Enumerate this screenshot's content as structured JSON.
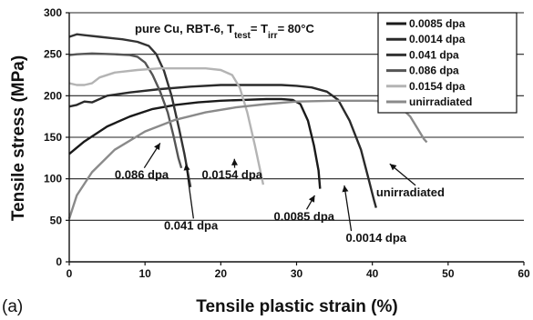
{
  "panel_label": "(a)",
  "chart_data": {
    "type": "line",
    "title_parts": [
      {
        "text": "pure Cu, RBT-6,  T",
        "shift": ""
      },
      {
        "text": "test",
        "shift": "sub"
      },
      {
        "text": "= T",
        "shift": ""
      },
      {
        "text": "irr",
        "shift": "sub"
      },
      {
        "text": "= 80°C",
        "shift": ""
      }
    ],
    "xlabel": "Tensile plastic strain (%)",
    "ylabel": "Tensile stress (MPa)",
    "xlim": [
      0,
      60
    ],
    "ylim": [
      0,
      300
    ],
    "xticks": [
      0,
      10,
      20,
      30,
      40,
      50,
      60
    ],
    "yticks": [
      0,
      50,
      100,
      150,
      200,
      250,
      300
    ],
    "grid": "horizontal",
    "legend_position": "top-right",
    "series": [
      {
        "name": "0.0085 dpa",
        "color": "#1a1a1a",
        "points": [
          [
            0,
            130
          ],
          [
            2,
            145
          ],
          [
            5,
            163
          ],
          [
            8,
            175
          ],
          [
            11,
            184
          ],
          [
            14,
            189
          ],
          [
            17,
            192
          ],
          [
            20,
            194
          ],
          [
            23,
            195
          ],
          [
            26,
            196
          ],
          [
            28,
            196
          ],
          [
            29.5,
            195
          ],
          [
            30.5,
            190
          ],
          [
            31.5,
            170
          ],
          [
            32.3,
            140
          ],
          [
            32.9,
            110
          ],
          [
            33.1,
            88
          ]
        ]
      },
      {
        "name": "0.0014 dpa",
        "color": "#2a2a2a",
        "points": [
          [
            0,
            187
          ],
          [
            1,
            189
          ],
          [
            2,
            193
          ],
          [
            3,
            192
          ],
          [
            5,
            200
          ],
          [
            8,
            204
          ],
          [
            12,
            208
          ],
          [
            16,
            211
          ],
          [
            20,
            213
          ],
          [
            25,
            213
          ],
          [
            28,
            213
          ],
          [
            30,
            212
          ],
          [
            32,
            210
          ],
          [
            34,
            205
          ],
          [
            35.5,
            195
          ],
          [
            37,
            170
          ],
          [
            38.5,
            135
          ],
          [
            39.5,
            100
          ],
          [
            40.2,
            75
          ],
          [
            40.5,
            65
          ]
        ]
      },
      {
        "name": "0.041 dpa",
        "color": "#333333",
        "points": [
          [
            0,
            271
          ],
          [
            1,
            274
          ],
          [
            2,
            273
          ],
          [
            4,
            271
          ],
          [
            7,
            268
          ],
          [
            9,
            265
          ],
          [
            10.5,
            260
          ],
          [
            11.5,
            250
          ],
          [
            12.5,
            230
          ],
          [
            13.5,
            200
          ],
          [
            14.5,
            160
          ],
          [
            15.2,
            130
          ],
          [
            15.8,
            100
          ],
          [
            16,
            90
          ]
        ]
      },
      {
        "name": "0.086 dpa",
        "color": "#555555",
        "points": [
          [
            0,
            249
          ],
          [
            1,
            250
          ],
          [
            3,
            251
          ],
          [
            6,
            250
          ],
          [
            8,
            249
          ],
          [
            9,
            247
          ],
          [
            10,
            240
          ],
          [
            11,
            225
          ],
          [
            12,
            205
          ],
          [
            13,
            180
          ],
          [
            13.8,
            150
          ],
          [
            14.4,
            125
          ],
          [
            14.8,
            113
          ]
        ]
      },
      {
        "name": "0.0154 dpa",
        "color": "#b4b4b4",
        "points": [
          [
            0,
            215
          ],
          [
            1,
            213
          ],
          [
            2,
            213
          ],
          [
            3,
            215
          ],
          [
            4,
            222
          ],
          [
            6,
            228
          ],
          [
            9,
            231
          ],
          [
            12,
            233
          ],
          [
            15,
            233
          ],
          [
            18,
            233
          ],
          [
            20,
            231
          ],
          [
            21.5,
            225
          ],
          [
            22.5,
            210
          ],
          [
            23.5,
            180
          ],
          [
            24.5,
            140
          ],
          [
            25.2,
            110
          ],
          [
            25.6,
            93
          ]
        ]
      },
      {
        "name": "unirradiated",
        "color": "#8a8a8a",
        "points": [
          [
            0,
            52
          ],
          [
            1,
            80
          ],
          [
            3,
            108
          ],
          [
            6,
            135
          ],
          [
            10,
            157
          ],
          [
            14,
            171
          ],
          [
            18,
            180
          ],
          [
            22,
            186
          ],
          [
            26,
            190
          ],
          [
            30,
            193
          ],
          [
            35,
            194
          ],
          [
            40,
            194
          ],
          [
            42,
            193
          ],
          [
            43.5,
            188
          ],
          [
            45,
            175
          ],
          [
            46,
            160
          ],
          [
            46.8,
            148
          ],
          [
            47.2,
            144
          ]
        ]
      }
    ],
    "annotations": [
      {
        "text": "0.086 dpa",
        "x": 6,
        "y": 100,
        "arrow_to": [
          12,
          143
        ]
      },
      {
        "text": "0.0154 dpa",
        "x": 17.5,
        "y": 100,
        "arrow_to": [
          21.8,
          124
        ]
      },
      {
        "text": "0.041 dpa",
        "x": 12.5,
        "y": 39,
        "arrow_to": [
          15.4,
          118
        ]
      },
      {
        "text": "0.0085 dpa",
        "x": 27,
        "y": 50,
        "arrow_to": [
          32.4,
          80
        ]
      },
      {
        "text": "0.0014 dpa",
        "x": 36.5,
        "y": 24,
        "arrow_to": [
          36.3,
          92
        ]
      },
      {
        "text": "unirradiated",
        "x": 40.5,
        "y": 79,
        "arrow_to": [
          42.3,
          118
        ]
      }
    ]
  }
}
